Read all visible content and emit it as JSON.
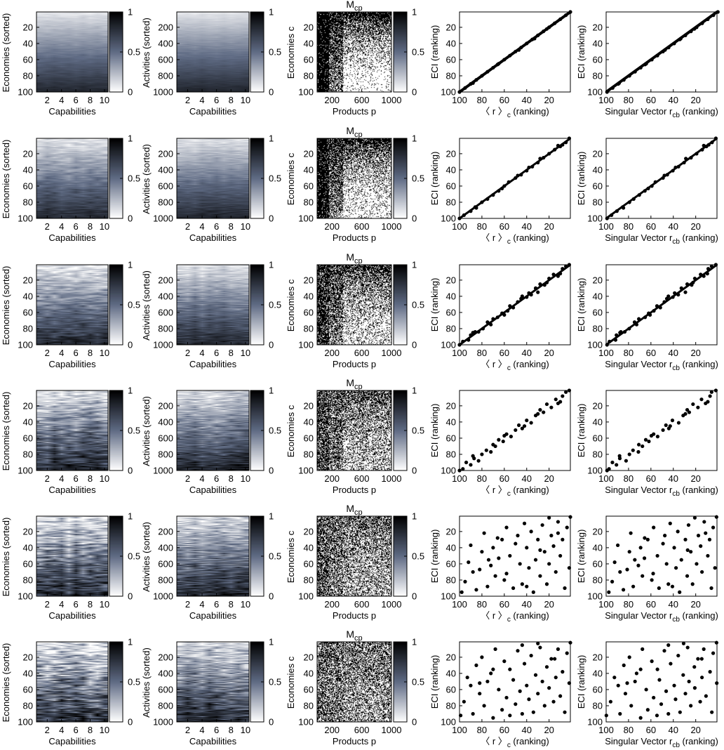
{
  "chart_data": {
    "type": "figure-grid",
    "rows": 6,
    "colormap": {
      "low": "#ffffff",
      "mid": "#5f6b84",
      "high": "#000000"
    },
    "ecis": [
      [
        [
          100,
          100
        ],
        [
          95,
          95
        ],
        [
          90,
          90
        ],
        [
          85,
          85
        ],
        [
          80,
          80
        ],
        [
          75,
          75
        ],
        [
          70,
          70
        ],
        [
          65,
          65
        ],
        [
          60,
          60
        ],
        [
          55,
          55
        ],
        [
          50,
          50
        ],
        [
          45,
          45
        ],
        [
          40,
          40
        ],
        [
          35,
          35
        ],
        [
          30,
          30
        ],
        [
          25,
          25
        ],
        [
          20,
          20
        ],
        [
          15,
          15
        ],
        [
          10,
          10
        ],
        [
          5,
          5
        ],
        [
          1,
          1
        ],
        [
          88,
          89
        ],
        [
          47,
          48
        ],
        [
          22,
          22
        ],
        [
          66,
          66
        ],
        [
          33,
          34
        ]
      ],
      [
        [
          100,
          100
        ],
        [
          96,
          96
        ],
        [
          90,
          91
        ],
        [
          86,
          86
        ],
        [
          80,
          80
        ],
        [
          75,
          76
        ],
        [
          70,
          71
        ],
        [
          65,
          66
        ],
        [
          60,
          60
        ],
        [
          56,
          55
        ],
        [
          50,
          50
        ],
        [
          45,
          46
        ],
        [
          40,
          41
        ],
        [
          35,
          36
        ],
        [
          30,
          31
        ],
        [
          25,
          25
        ],
        [
          20,
          20
        ],
        [
          15,
          15
        ],
        [
          10,
          11
        ],
        [
          5,
          6
        ],
        [
          2,
          1
        ],
        [
          85,
          87
        ],
        [
          48,
          47
        ],
        [
          28,
          26
        ],
        [
          62,
          63
        ],
        [
          12,
          10
        ],
        [
          8,
          9
        ],
        [
          38,
          37
        ]
      ],
      [
        [
          100,
          100
        ],
        [
          97,
          96
        ],
        [
          92,
          94
        ],
        [
          88,
          85
        ],
        [
          83,
          84
        ],
        [
          79,
          80
        ],
        [
          75,
          72
        ],
        [
          70,
          68
        ],
        [
          66,
          66
        ],
        [
          62,
          61
        ],
        [
          57,
          58
        ],
        [
          52,
          54
        ],
        [
          48,
          47
        ],
        [
          44,
          40
        ],
        [
          40,
          41
        ],
        [
          36,
          38
        ],
        [
          32,
          30
        ],
        [
          28,
          25
        ],
        [
          24,
          26
        ],
        [
          20,
          18
        ],
        [
          16,
          13
        ],
        [
          12,
          15
        ],
        [
          8,
          6
        ],
        [
          5,
          3
        ],
        [
          2,
          1
        ],
        [
          60,
          63
        ],
        [
          30,
          35
        ],
        [
          22,
          23
        ],
        [
          10,
          12
        ],
        [
          55,
          52
        ],
        [
          45,
          43
        ],
        [
          38,
          36
        ],
        [
          90,
          88
        ],
        [
          72,
          75
        ],
        [
          86,
          84
        ]
      ],
      [
        [
          100,
          100
        ],
        [
          97,
          98
        ],
        [
          94,
          90
        ],
        [
          90,
          93
        ],
        [
          87,
          85
        ],
        [
          83,
          88
        ],
        [
          80,
          80
        ],
        [
          76,
          75
        ],
        [
          72,
          77
        ],
        [
          68,
          70
        ],
        [
          65,
          62
        ],
        [
          61,
          64
        ],
        [
          58,
          55
        ],
        [
          54,
          58
        ],
        [
          50,
          50
        ],
        [
          47,
          44
        ],
        [
          44,
          48
        ],
        [
          40,
          38
        ],
        [
          36,
          41
        ],
        [
          32,
          32
        ],
        [
          28,
          25
        ],
        [
          25,
          28
        ],
        [
          22,
          18
        ],
        [
          18,
          22
        ],
        [
          14,
          12
        ],
        [
          10,
          15
        ],
        [
          8,
          8
        ],
        [
          5,
          3
        ],
        [
          2,
          1
        ],
        [
          60,
          57
        ],
        [
          42,
          45
        ],
        [
          30,
          30
        ],
        [
          12,
          17
        ],
        [
          70,
          68
        ],
        [
          88,
          82
        ]
      ],
      [
        [
          98,
          95
        ],
        [
          95,
          82
        ],
        [
          92,
          58
        ],
        [
          90,
          37
        ],
        [
          88,
          70
        ],
        [
          85,
          92
        ],
        [
          82,
          67
        ],
        [
          80,
          45
        ],
        [
          78,
          22
        ],
        [
          75,
          88
        ],
        [
          72,
          62
        ],
        [
          70,
          40
        ],
        [
          68,
          75
        ],
        [
          65,
          53
        ],
        [
          62,
          30
        ],
        [
          60,
          80
        ],
        [
          58,
          15
        ],
        [
          55,
          50
        ],
        [
          52,
          90
        ],
        [
          50,
          35
        ],
        [
          48,
          25
        ],
        [
          46,
          60
        ],
        [
          44,
          85
        ],
        [
          42,
          10
        ],
        [
          40,
          40
        ],
        [
          38,
          65
        ],
        [
          36,
          20
        ],
        [
          34,
          95
        ],
        [
          32,
          55
        ],
        [
          30,
          30
        ],
        [
          28,
          75
        ],
        [
          26,
          12
        ],
        [
          24,
          45
        ],
        [
          22,
          85
        ],
        [
          20,
          60
        ],
        [
          18,
          25
        ],
        [
          16,
          38
        ],
        [
          14,
          70
        ],
        [
          12,
          8
        ],
        [
          10,
          50
        ],
        [
          8,
          30
        ],
        [
          6,
          90
        ],
        [
          4,
          15
        ],
        [
          2,
          65
        ],
        [
          1,
          2
        ],
        [
          20,
          3
        ],
        [
          12,
          22
        ],
        [
          66,
          28
        ],
        [
          74,
          55
        ],
        [
          58,
          72
        ],
        [
          40,
          88
        ],
        [
          28,
          43
        ]
      ],
      [
        [
          99,
          92
        ],
        [
          96,
          75
        ],
        [
          93,
          45
        ],
        [
          90,
          55
        ],
        [
          88,
          90
        ],
        [
          85,
          30
        ],
        [
          82,
          65
        ],
        [
          80,
          20
        ],
        [
          78,
          80
        ],
        [
          75,
          50
        ],
        [
          72,
          40
        ],
        [
          70,
          95
        ],
        [
          68,
          10
        ],
        [
          65,
          60
        ],
        [
          62,
          85
        ],
        [
          60,
          25
        ],
        [
          58,
          70
        ],
        [
          55,
          35
        ],
        [
          52,
          48
        ],
        [
          50,
          78
        ],
        [
          48,
          12
        ],
        [
          46,
          62
        ],
        [
          44,
          90
        ],
        [
          42,
          28
        ],
        [
          40,
          55
        ],
        [
          38,
          72
        ],
        [
          36,
          18
        ],
        [
          34,
          88
        ],
        [
          32,
          42
        ],
        [
          30,
          65
        ],
        [
          28,
          8
        ],
        [
          26,
          50
        ],
        [
          24,
          80
        ],
        [
          22,
          32
        ],
        [
          20,
          58
        ],
        [
          18,
          22
        ],
        [
          16,
          75
        ],
        [
          14,
          45
        ],
        [
          12,
          10
        ],
        [
          10,
          68
        ],
        [
          8,
          38
        ],
        [
          6,
          88
        ],
        [
          4,
          15
        ],
        [
          2,
          52
        ],
        [
          1,
          2
        ],
        [
          30,
          3
        ],
        [
          15,
          22
        ],
        [
          70,
          35
        ],
        [
          82,
          52
        ],
        [
          55,
          92
        ],
        [
          44,
          5
        ]
      ]
    ],
    "panel1": {
      "ylabel": "Economies (sorted)",
      "xlabel": "Capabilities",
      "yticks": [
        "20",
        "40",
        "60",
        "80",
        "100"
      ],
      "xticks": [
        "2",
        "4",
        "6",
        "8",
        "10"
      ]
    },
    "panel2": {
      "ylabel": "Activities (sorted)",
      "xlabel": "Capabilities",
      "yticks": [
        "200",
        "400",
        "600",
        "800",
        "1000"
      ],
      "xticks": [
        "2",
        "4",
        "6",
        "8",
        "10"
      ]
    },
    "matrix": {
      "title_main": "M",
      "title_sub": "cp",
      "ylabel": "Economies c",
      "xlabel": "Products p",
      "yticks": [
        "20",
        "40",
        "60",
        "80",
        "100"
      ],
      "xticks": [
        "200",
        "600",
        "1000"
      ]
    },
    "colorbar": {
      "ticks": [
        "1",
        "0.5",
        "0"
      ]
    },
    "scatter": {
      "ylabel": "ECI (ranking)",
      "xticks": [
        "100",
        "80",
        "60",
        "40",
        "20"
      ],
      "yticks": [
        "20",
        "40",
        "60",
        "80",
        "100"
      ],
      "xlabel4_left": "〈 r 〉",
      "xlabel4_sub": "c",
      "xlabel4_right": " (ranking)",
      "xlabel5_main": "Singular Vector r",
      "xlabel5_sub": "cb",
      "xlabel5_right": " (ranking)"
    }
  }
}
